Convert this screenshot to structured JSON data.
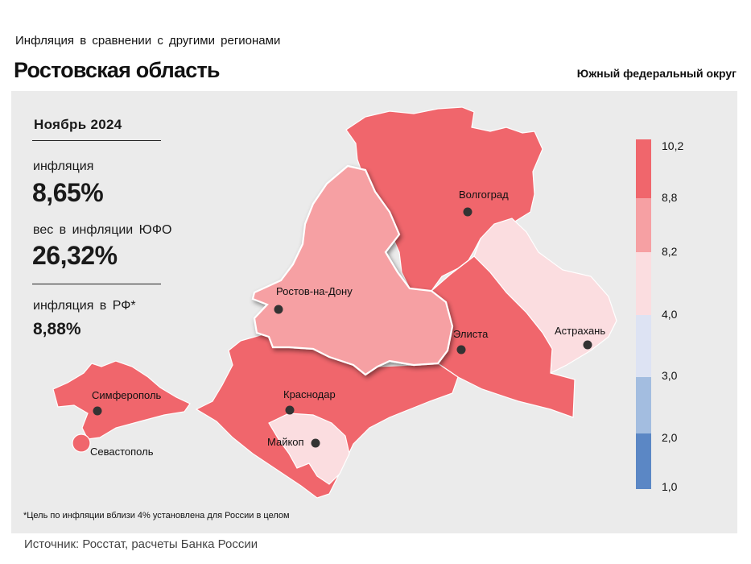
{
  "header": {
    "subtitle": "Инфляция  в сравнении  с другими  регионами",
    "title": "Ростовская область",
    "district": "Южный федеральный округ"
  },
  "stats": {
    "period": "Ноябрь 2024",
    "inflation_label": "инфляция",
    "inflation_value": "8,65%",
    "weight_label": "вес в инфляции  ЮФО",
    "weight_value": "26,32%",
    "rf_label": "инфляция  в РФ*",
    "rf_value": "8,88%"
  },
  "map": {
    "highlighted_region": "Ростов-на-Дону",
    "cities": [
      {
        "name": "Волгоград"
      },
      {
        "name": "Ростов-на-Дону"
      },
      {
        "name": "Элиста"
      },
      {
        "name": "Астрахань"
      },
      {
        "name": "Симферополь"
      },
      {
        "name": "Краснодар"
      },
      {
        "name": "Майкоп"
      },
      {
        "name": "Севастополь"
      }
    ]
  },
  "legend": {
    "ticks": [
      "10,2",
      "8,8",
      "8,2",
      "4,0",
      "3,0",
      "2,0",
      "1,0"
    ],
    "colors": [
      "#f0666c",
      "#f6a0a3",
      "#fbdde0",
      "#dde3f3",
      "#a3bde0",
      "#5b87c5"
    ]
  },
  "colors": {
    "high": "#f0666c",
    "mid": "#f6a0a3",
    "low": "#fbdde0",
    "panel": "#ebebeb"
  },
  "footnote": "*Цель по инфляции вблизи 4% установлена для России в целом",
  "source": "Источник: Росстат, расчеты Банка России"
}
